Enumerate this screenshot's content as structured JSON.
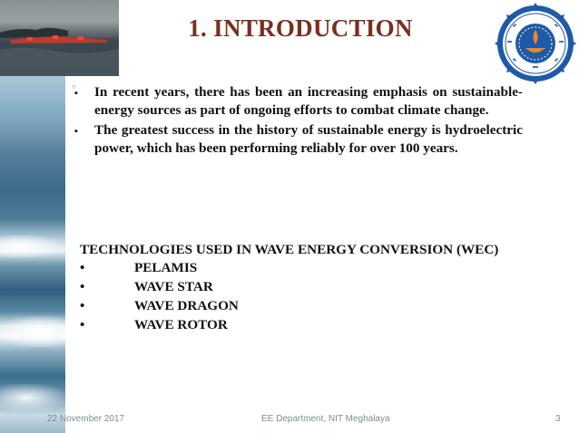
{
  "slide": {
    "title": "1. INTRODUCTION",
    "bullets": [
      "In recent years, there has been an increasing emphasis on sustainable-energy sources as part of ongoing efforts to combat climate change.",
      "The greatest success in the history of sustainable energy is hydroelectric power, which has been performing reliably for over 100 years."
    ],
    "technologies_heading": "TECHNOLOGIES USED IN WAVE ENERGY CONVERSION (WEC)",
    "technologies": [
      "PELAMIS",
      "WAVE STAR",
      "WAVE DRAGON",
      "WAVE ROTOR"
    ],
    "bullet_glyph": "▪",
    "dot_glyph": "•"
  },
  "footer": {
    "date": "22 November 2017",
    "center": "EE Department, NIT Meghalaya",
    "page": "3"
  },
  "colors": {
    "title": "#7a2e1e",
    "footer": "#7f8a93",
    "logo_blue": "#1f5aa8",
    "logo_orange": "#e58a2a"
  }
}
